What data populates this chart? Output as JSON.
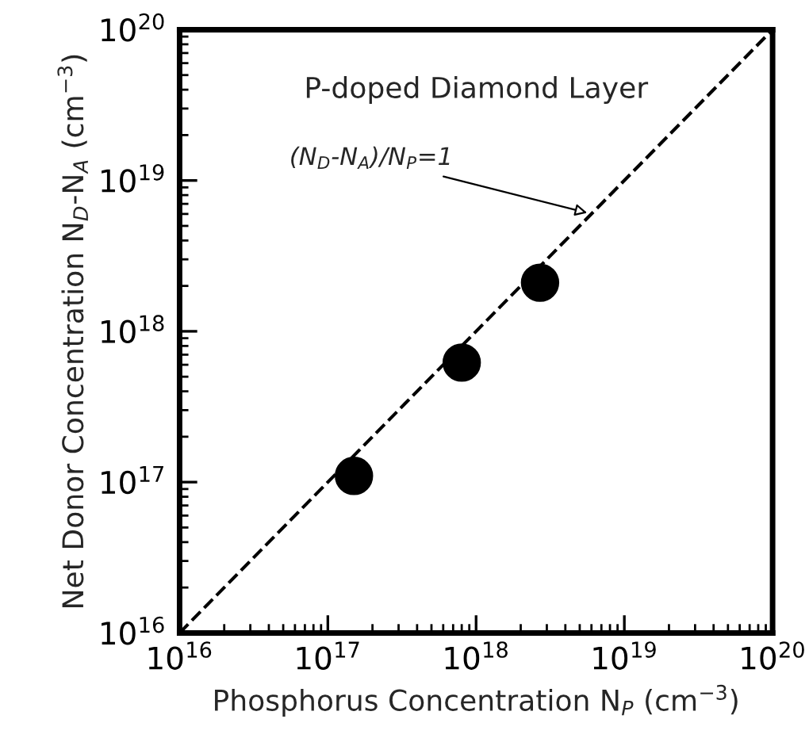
{
  "chart_data": {
    "type": "scatter",
    "title": "P-doped Diamond Layer",
    "xlabel": "Phosphorus Concentration N$_{P}$ (cm$^{−3}$)",
    "ylabel": "Net Donor Concentration N$_{D}$-N$_{A}$ (cm$^{−3}$)",
    "log": "xy",
    "xlim": [
      1e+16,
      1e+20
    ],
    "ylim": [
      1e+16,
      1e+20
    ],
    "xticks": [
      {
        "value": 1e+16,
        "label": "10$^{16}$"
      },
      {
        "value": 1e+17,
        "label": "10$^{17}$"
      },
      {
        "value": 1e+18,
        "label": "10$^{18}$"
      },
      {
        "value": 1e+19,
        "label": "10$^{19}$"
      },
      {
        "value": 1e+20,
        "label": "10$^{20}$"
      }
    ],
    "yticks": [
      {
        "value": 1e+16,
        "label": "10$^{16}$"
      },
      {
        "value": 1e+17,
        "label": "10$^{17}$"
      },
      {
        "value": 1e+18,
        "label": "10$^{18}$"
      },
      {
        "value": 1e+19,
        "label": "10$^{19}$"
      },
      {
        "value": 1e+20,
        "label": "10$^{20}$"
      }
    ],
    "grid": false,
    "legend": false,
    "marker": "circle",
    "series": [
      {
        "type": "scatter",
        "color": "#000000",
        "x": [
          1.5e+17,
          8e+17,
          2.7e+18
        ],
        "values": [
          1.1e+17,
          6.2e+17,
          2.1e+18
        ]
      },
      {
        "type": "line",
        "color": "#000000",
        "line_style": "dashed",
        "marker": "none",
        "x": [
          1e+16,
          1e+20
        ],
        "values": [
          1e+16,
          1e+20
        ]
      }
    ],
    "annotations": [
      {
        "text": "(N$_{D}$-N$_{A}$)/N$_{P}$=1",
        "x": 6e+18,
        "y": 6e+18
      }
    ]
  }
}
